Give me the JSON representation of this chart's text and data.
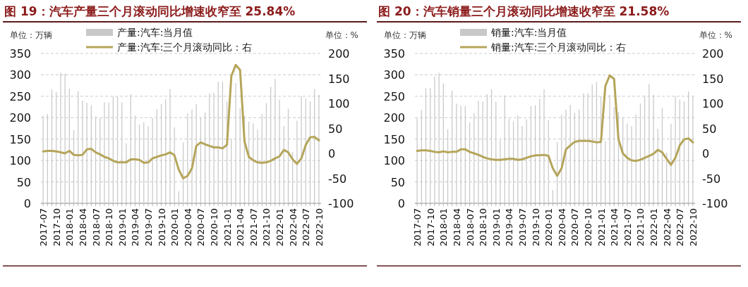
{
  "chart_data": [
    {
      "type": "bar",
      "title": "图 19：汽车产量三个月滚动同比增速收窄至 25.84%",
      "ylabel": "单位：万辆",
      "y2label": "单位：%",
      "categories": [
        "2017-07",
        null,
        null,
        "2017-10",
        null,
        null,
        "2018-01",
        null,
        null,
        "2018-04",
        null,
        null,
        "2018-07",
        null,
        null,
        "2018-10",
        null,
        null,
        "2019-01",
        null,
        null,
        "2019-04",
        null,
        null,
        "2019-07",
        null,
        null,
        "2019-10",
        null,
        null,
        "2020-01",
        null,
        null,
        "2020-04",
        null,
        null,
        "2020-07",
        null,
        null,
        "2020-10",
        null,
        null,
        "2021-01",
        null,
        null,
        "2021-04",
        null,
        null,
        "2021-07",
        null,
        null,
        "2021-10",
        null,
        null,
        "2022-01",
        null,
        null,
        "2022-04",
        null,
        null,
        "2022-07",
        null,
        null,
        "2022-10"
      ],
      "series": [
        {
          "name": "产量:汽车:当月值",
          "color": "#c8c8c8",
          "values": [
            205,
            209,
            266,
            260,
            305,
            303,
            268,
            171,
            262,
            240,
            235,
            229,
            203,
            199,
            236,
            235,
            249,
            249,
            236,
            140,
            255,
            205,
            184,
            189,
            180,
            199,
            220,
            232,
            243,
            267,
            177,
            28,
            142,
            210,
            219,
            232,
            200,
            212,
            257,
            258,
            284,
            284,
            238,
            151,
            281,
            222,
            204,
            191,
            187,
            172,
            208,
            234,
            272,
            291,
            242,
            181,
            221,
            120,
            193,
            250,
            245,
            238,
            267,
            253
          ]
        },
        {
          "name": "产量:汽车:三个月滚动同比：右",
          "type": "line",
          "axis": "y2",
          "color": "#b5a55a",
          "values": [
            4,
            5,
            5,
            4,
            2,
            0,
            5,
            -3,
            -4,
            -3,
            8,
            9,
            2,
            -2,
            -7,
            -10,
            -15,
            -18,
            -18,
            -18,
            -12,
            -12,
            -13,
            -19,
            -18,
            -10,
            -7,
            -4,
            -2,
            2,
            -4,
            -33,
            -50,
            -45,
            -30,
            15,
            22,
            18,
            15,
            12,
            12,
            10,
            17,
            155,
            177,
            167,
            24,
            -7,
            -14,
            -18,
            -19,
            -18,
            -15,
            -10,
            -6,
            7,
            2,
            -12,
            -21,
            -10,
            17,
            32,
            33,
            26
          ]
        }
      ],
      "ylim": [
        0,
        350
      ],
      "yticks": [
        0,
        50,
        100,
        150,
        200,
        250,
        300,
        350
      ],
      "y2lim": [
        -100,
        200
      ],
      "y2ticks": [
        -100,
        -50,
        0,
        50,
        100,
        150,
        200
      ],
      "grid": "y",
      "legend": "top"
    },
    {
      "type": "bar",
      "title": "图 20：汽车销量三个月滚动同比增速收窄至 21.58%",
      "ylabel": "单位：万辆",
      "y2label": "单位：%",
      "categories": [
        "2017-07",
        null,
        null,
        "2017-10",
        null,
        null,
        "2018-01",
        null,
        null,
        "2018-04",
        null,
        null,
        "2018-07",
        null,
        null,
        "2018-10",
        null,
        null,
        "2019-01",
        null,
        null,
        "2019-04",
        null,
        null,
        "2019-07",
        null,
        null,
        "2019-10",
        null,
        null,
        "2020-01",
        null,
        null,
        "2020-04",
        null,
        null,
        "2020-07",
        null,
        null,
        "2020-10",
        null,
        null,
        "2021-01",
        null,
        null,
        "2021-04",
        null,
        null,
        "2021-07",
        null,
        null,
        "2021-10",
        null,
        null,
        "2022-01",
        null,
        null,
        "2022-04",
        null,
        null,
        "2022-07",
        null,
        null,
        "2022-10"
      ],
      "series": [
        {
          "name": "销量:汽车:当月值",
          "color": "#c8c8c8",
          "values": [
            198,
            218,
            269,
            269,
            296,
            305,
            280,
            173,
            263,
            233,
            228,
            227,
            189,
            210,
            239,
            238,
            255,
            266,
            237,
            148,
            252,
            198,
            191,
            206,
            181,
            196,
            227,
            229,
            245,
            266,
            194,
            31,
            143,
            207,
            219,
            230,
            211,
            219,
            257,
            257,
            277,
            283,
            250,
            145,
            253,
            225,
            213,
            201,
            186,
            180,
            207,
            233,
            252,
            279,
            253,
            174,
            223,
            118,
            186,
            250,
            242,
            238,
            261,
            250
          ]
        },
        {
          "name": "销量:汽车:三个月滚动同比：右",
          "type": "line",
          "axis": "y2",
          "color": "#b5a55a",
          "values": [
            5,
            6,
            6,
            5,
            3,
            2,
            4,
            2,
            3,
            3,
            8,
            8,
            3,
            0,
            -3,
            -7,
            -10,
            -12,
            -13,
            -13,
            -12,
            -11,
            -11,
            -13,
            -12,
            -9,
            -6,
            -4,
            -4,
            -3,
            -5,
            -30,
            -45,
            -30,
            8,
            16,
            23,
            25,
            25,
            25,
            24,
            22,
            23,
            135,
            156,
            149,
            28,
            0,
            -9,
            -14,
            -15,
            -13,
            -9,
            -5,
            -1,
            7,
            2,
            -11,
            -23,
            -9,
            16,
            28,
            30,
            22
          ]
        }
      ],
      "ylim": [
        0,
        350
      ],
      "yticks": [
        0,
        50,
        100,
        150,
        200,
        250,
        300,
        350
      ],
      "y2lim": [
        -100,
        200
      ],
      "y2ticks": [
        -100,
        -50,
        0,
        50,
        100,
        150,
        200
      ],
      "grid": "y",
      "legend": "top"
    }
  ]
}
